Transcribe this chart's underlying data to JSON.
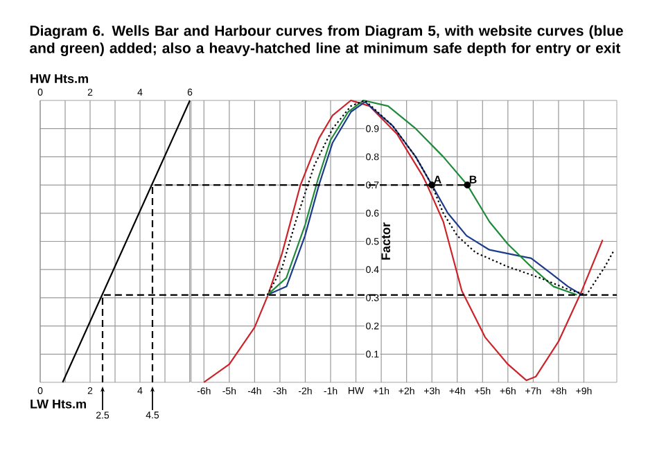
{
  "chart_data": [
    {
      "type": "line",
      "title": "Diagram 6. Wells Bar and Harbour curves from Diagram 5, with website curves (blue and green) added; also a heavy-hatched line at minimum safe depth for entry or exit",
      "xlabel": "LW Hts.m",
      "x2label": "HW Hts.m",
      "xlim": [
        0,
        6
      ],
      "ylim": [
        0,
        1
      ],
      "xticks": [
        0,
        {
          "value": 1,
          "label": null
        },
        2,
        {
          "value": 3,
          "label": null
        },
        4,
        {
          "value": 5,
          "label": null
        },
        {
          "value": 6,
          "label": null
        }
      ],
      "x2ticks": [
        0,
        2,
        4,
        6
      ],
      "x2lim": [
        0,
        6
      ],
      "yticks": [
        {
          "value": 0.1,
          "label": null
        },
        {
          "value": 0.2,
          "label": null
        },
        {
          "value": 0.3,
          "label": null
        },
        {
          "value": 0.4,
          "label": null
        },
        {
          "value": 0.5,
          "label": null
        },
        {
          "value": 0.6,
          "label": null
        },
        {
          "value": 0.7,
          "label": null
        },
        {
          "value": 0.8,
          "label": null
        },
        {
          "value": 0.9,
          "label": null
        }
      ],
      "tick_labels": "x",
      "grid": true,
      "series": [
        {
          "color": "#000000",
          "x": [
            0.9,
            6
          ],
          "values": [
            0,
            1
          ]
        },
        {
          "color": "#000000",
          "line_style": "dashed",
          "x": [
            2.5,
            2.5,
            6
          ],
          "values": [
            0,
            0.31,
            0.31
          ]
        },
        {
          "color": "#000000",
          "line_style": "dashed",
          "x": [
            4.5,
            4.5,
            6
          ],
          "values": [
            0,
            0.7,
            0.7
          ]
        }
      ],
      "annotations": [
        {
          "text": "2.5",
          "x": 2.5,
          "y": 0
        },
        {
          "text": "4.5",
          "x": 4.5,
          "y": 0
        }
      ]
    },
    {
      "type": "line",
      "ylabel": "Factor",
      "xlim": [
        -6.5,
        10.3
      ],
      "ylim": [
        0,
        1
      ],
      "xticks": [
        {
          "value": -6,
          "label": "-6h"
        },
        {
          "value": -5,
          "label": "-5h"
        },
        {
          "value": -4,
          "label": "-4h"
        },
        {
          "value": -3,
          "label": "-3h"
        },
        {
          "value": -2,
          "label": "-2h"
        },
        {
          "value": -1,
          "label": "-1h"
        },
        {
          "value": 0,
          "label": "HW"
        },
        {
          "value": 1,
          "label": "+1h"
        },
        {
          "value": 2,
          "label": "+2h"
        },
        {
          "value": 3,
          "label": "+3h"
        },
        {
          "value": 4,
          "label": "+4h"
        },
        {
          "value": 5,
          "label": "+5h"
        },
        {
          "value": 6,
          "label": "+6h"
        },
        {
          "value": 7,
          "label": "+7h"
        },
        {
          "value": 8,
          "label": "+8h"
        },
        {
          "value": 9,
          "label": "+9h"
        }
      ],
      "yticks": [
        0.1,
        0.2,
        0.3,
        0.4,
        0.5,
        0.6,
        0.7,
        0.8,
        0.9
      ],
      "grid": true,
      "series": [
        {
          "color": "#cc2229",
          "x": [
            -6,
            -5,
            -4,
            -3.47,
            -2.92,
            -2.19,
            -1.46,
            -0.92,
            -0.2,
            0.54,
            1.63,
            2.63,
            2.81,
            3.45,
            4.18,
            5.1,
            6.0,
            6.73,
            7.1,
            8.0,
            8.92,
            9.74
          ],
          "values": [
            0,
            0.064,
            0.195,
            0.31,
            0.456,
            0.7,
            0.865,
            0.947,
            1.0,
            0.98,
            0.88,
            0.733,
            0.7,
            0.57,
            0.325,
            0.16,
            0.064,
            0.007,
            0.02,
            0.145,
            0.325,
            0.505
          ]
        },
        {
          "color": "#1a3a8a",
          "x": [
            -3.5,
            -2.74,
            -2.01,
            -1.46,
            -0.92,
            -0.19,
            0.36,
            1.45,
            2.36,
            3,
            3.63,
            4.37,
            5.27,
            6.37,
            6.92,
            7.65,
            8.37,
            8.92
          ],
          "values": [
            0.31,
            0.34,
            0.52,
            0.7,
            0.85,
            0.96,
            0.995,
            0.91,
            0.8,
            0.7,
            0.6,
            0.52,
            0.47,
            0.45,
            0.44,
            0.39,
            0.34,
            0.31
          ]
        },
        {
          "color": "#1f8a3a",
          "x": [
            -3.5,
            -2.75,
            -2,
            -1.5,
            -1,
            -0.3,
            0.3,
            1.27,
            2.36,
            3.45,
            4.4,
            5.27,
            6.0,
            6.92,
            7.8,
            8.73
          ],
          "values": [
            0.31,
            0.37,
            0.56,
            0.72,
            0.86,
            0.96,
            1.0,
            0.98,
            0.9,
            0.8,
            0.7,
            0.57,
            0.49,
            0.41,
            0.34,
            0.31
          ]
        },
        {
          "color": "#000000",
          "line_style": "dotted",
          "x": [
            -3.5,
            -2.92,
            -2.38,
            -1.64,
            -0.92,
            -0.2,
            0.36,
            1.45,
            2.36,
            3,
            3.45,
            4.0,
            4.73,
            6.0,
            7.28,
            8.37,
            9.1,
            9.83,
            10.2
          ],
          "values": [
            0.31,
            0.405,
            0.57,
            0.77,
            0.9,
            0.98,
            1.0,
            0.91,
            0.8,
            0.7,
            0.6,
            0.52,
            0.46,
            0.41,
            0.37,
            0.33,
            0.31,
            0.41,
            0.47
          ]
        },
        {
          "color": "#000000",
          "line_style": "dashed",
          "x": [
            -6.5,
            4.4
          ],
          "values": [
            0.7,
            0.7
          ]
        },
        {
          "color": "#000000",
          "line_style": "dashed",
          "x": [
            -6.5,
            10.3
          ],
          "values": [
            0.31,
            0.31
          ]
        },
        {
          "type": "scatter",
          "marker": "circle",
          "color": "#000000",
          "x": [
            3,
            4.4
          ],
          "values": [
            0.7,
            0.7
          ]
        }
      ],
      "annotations": [
        {
          "text": "A",
          "x": 3,
          "y": 0.7
        },
        {
          "text": "B",
          "x": 4.4,
          "y": 0.7
        }
      ]
    }
  ]
}
